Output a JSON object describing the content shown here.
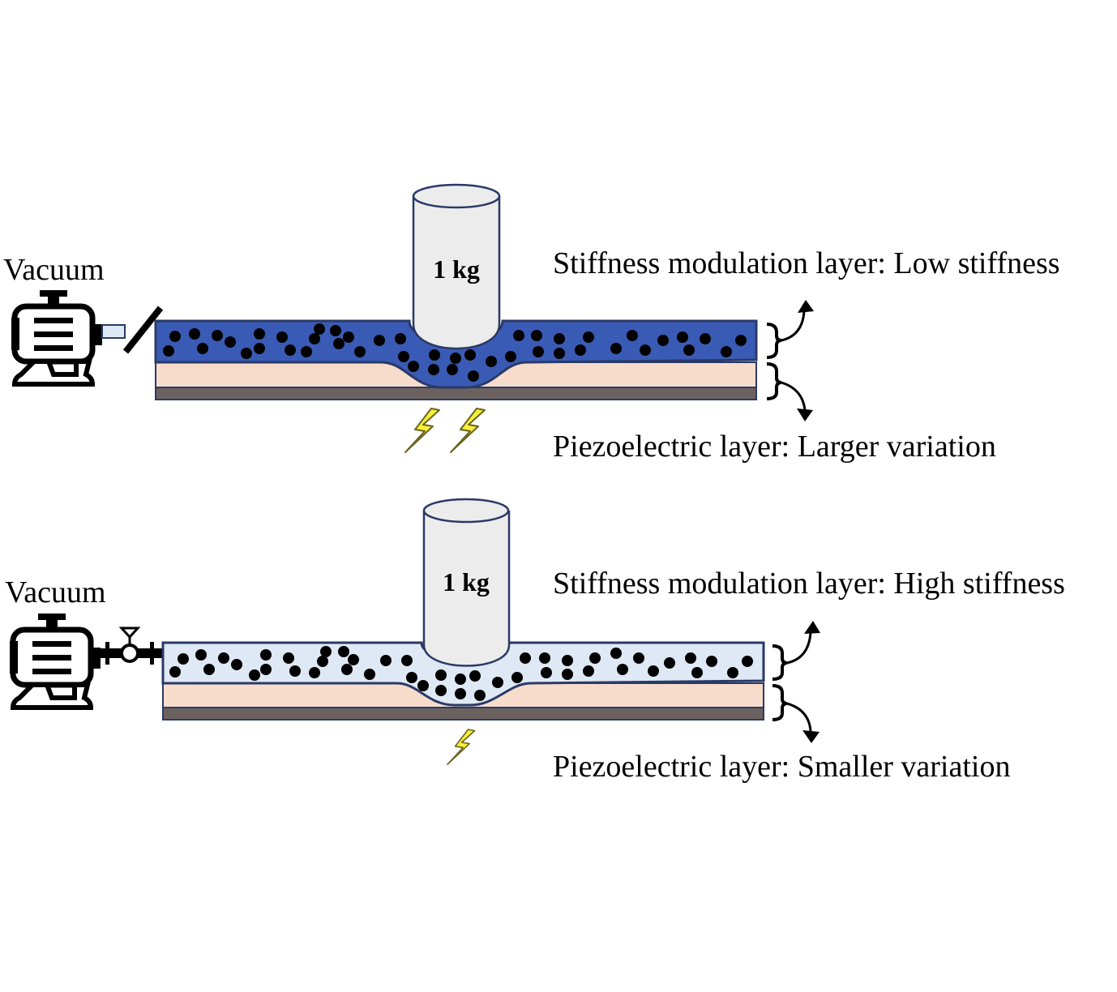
{
  "panels": [
    {
      "id": "low",
      "vacuum_label": "Vacuum",
      "weight_label": "1 kg",
      "stiffness_label": "Stiffness modulation layer: Low stiffness",
      "piezo_label": "Piezoelectric layer: Larger variation",
      "valve": "disconnected",
      "layer_color": "#3a5bb5",
      "lightning_count": 2
    },
    {
      "id": "high",
      "vacuum_label": "Vacuum",
      "weight_label": "1 kg",
      "stiffness_label": "Stiffness modulation layer: High stiffness",
      "piezo_label": "Piezoelectric layer: Smaller variation",
      "valve": "connected",
      "layer_color": "#dfe9f5",
      "lightning_count": 1
    }
  ],
  "colors": {
    "piezo_layer": "#f7dccb",
    "base_layer": "#6b6260",
    "particle": "#000000",
    "weight_fill": "#ececec",
    "weight_stroke": "#2a3a66",
    "lightning": "#f5f03a"
  }
}
